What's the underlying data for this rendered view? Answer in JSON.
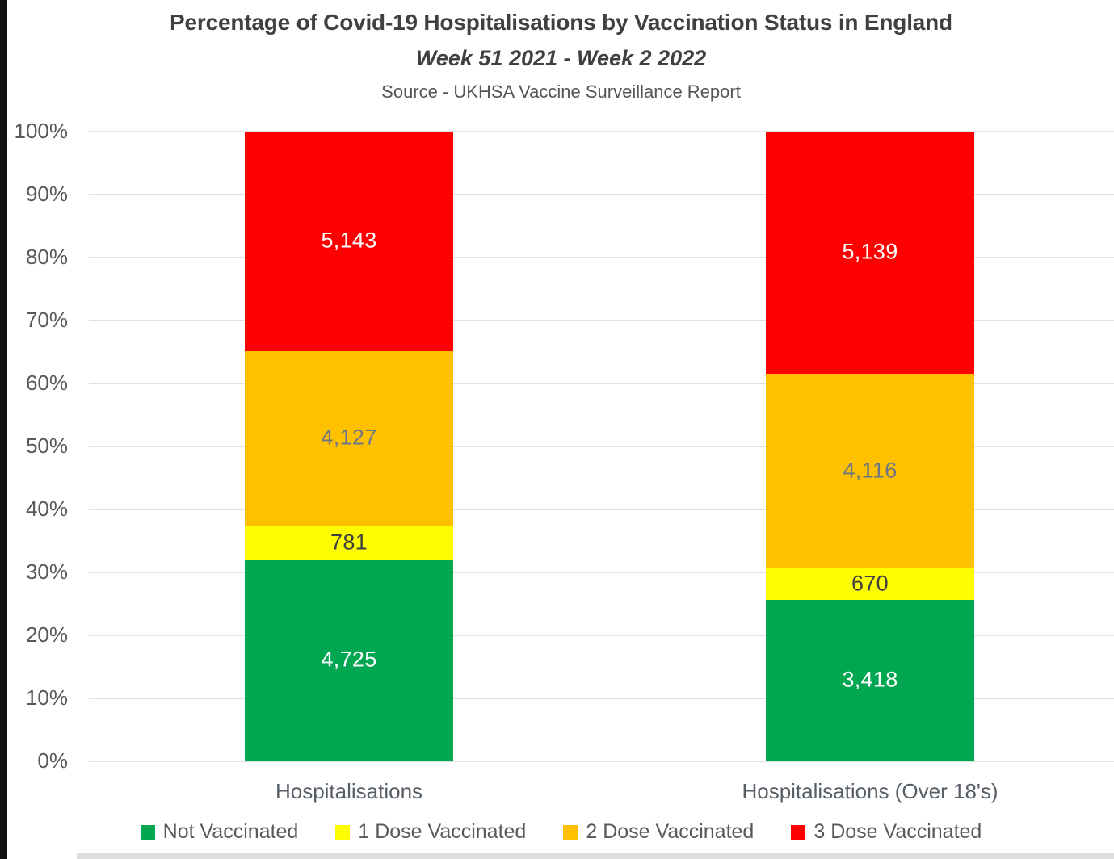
{
  "chart_data": {
    "type": "bar",
    "subtype": "stacked-percent-column",
    "title": "Percentage of Covid-19 Hospitalisations by Vaccination Status in England",
    "subtitle": "Week 51 2021 - Week 2 2022",
    "source": "Source - UKHSA Vaccine Surveillance Report",
    "categories": [
      "Hospitalisations",
      "Hospitalisations (Over 18's)"
    ],
    "series": [
      {
        "name": "Not Vaccinated",
        "color": "#00a650",
        "label_color": "#ffffff",
        "values": [
          4725,
          3418
        ],
        "labels": [
          "4,725",
          "3,418"
        ]
      },
      {
        "name": "1 Dose Vaccinated",
        "color": "#fdfd00",
        "label_color": "#3f3f3f",
        "values": [
          781,
          670
        ],
        "labels": [
          "781",
          "670"
        ]
      },
      {
        "name": "2 Dose Vaccinated",
        "color": "#ffc000",
        "label_color": "#6b7585",
        "values": [
          4127,
          4116
        ],
        "labels": [
          "4,127",
          "4,116"
        ]
      },
      {
        "name": "3 Dose Vaccinated",
        "color": "#fe0000",
        "label_color": "#ffffff",
        "values": [
          5143,
          5139
        ],
        "labels": [
          "5,143",
          "5,139"
        ]
      }
    ],
    "y_axis": {
      "min": 0,
      "max": 100,
      "step": 10,
      "tick_labels": [
        "0%",
        "10%",
        "20%",
        "30%",
        "40%",
        "50%",
        "60%",
        "70%",
        "80%",
        "90%",
        "100%"
      ]
    },
    "grid": true,
    "legend_position": "bottom",
    "axis_label_color": "#595959",
    "grid_color": "#e0e0e0"
  }
}
